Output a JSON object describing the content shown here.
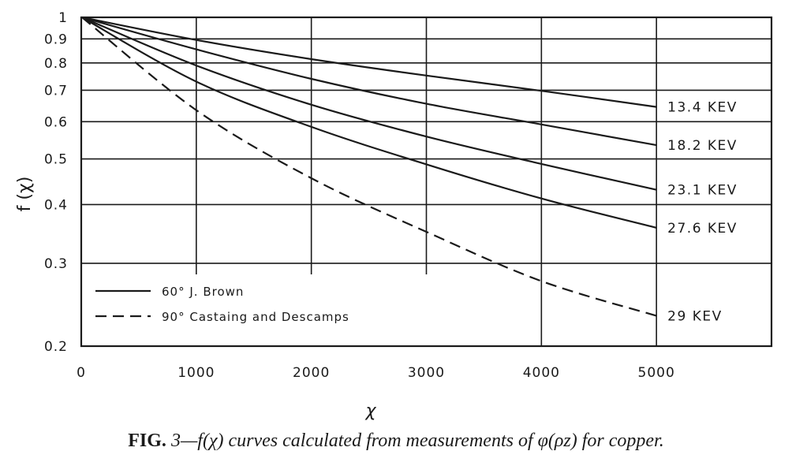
{
  "chart_data": {
    "type": "line",
    "title": "",
    "xlabel": "χ",
    "ylabel": "f (χ)",
    "xlim": [
      0,
      6000
    ],
    "ylim": [
      0.2,
      1
    ],
    "yscale": "log",
    "grid": true,
    "x_ticks": [
      {
        "value": 0,
        "label": "0"
      },
      {
        "value": 1000,
        "label": "1000"
      },
      {
        "value": 2000,
        "label": "2000"
      },
      {
        "value": 3000,
        "label": "3000"
      },
      {
        "value": 4000,
        "label": "4000"
      },
      {
        "value": 5000,
        "label": "5000"
      }
    ],
    "y_ticks": [
      {
        "value": 1,
        "label": "1"
      },
      {
        "value": 0.9,
        "label": "0.9"
      },
      {
        "value": 0.8,
        "label": "0.8"
      },
      {
        "value": 0.7,
        "label": "0.7"
      },
      {
        "value": 0.6,
        "label": "0.6"
      },
      {
        "value": 0.5,
        "label": "0.5"
      },
      {
        "value": 0.4,
        "label": "0.4"
      },
      {
        "value": 0.3,
        "label": "0.3"
      },
      {
        "value": 0.2,
        "label": "0.2"
      }
    ],
    "series": [
      {
        "name": "13.4 KEV",
        "style": "solid",
        "x": [
          0,
          1000,
          2000,
          3000,
          4000,
          5000
        ],
        "y": [
          1.0,
          0.895,
          0.815,
          0.752,
          0.698,
          0.645
        ]
      },
      {
        "name": "18.2 KEV",
        "style": "solid",
        "x": [
          0,
          1000,
          2000,
          3000,
          4000,
          5000
        ],
        "y": [
          1.0,
          0.855,
          0.74,
          0.655,
          0.592,
          0.535
        ]
      },
      {
        "name": "23.1 KEV",
        "style": "solid",
        "x": [
          0,
          1000,
          2000,
          3000,
          4000,
          5000
        ],
        "y": [
          1.0,
          0.79,
          0.652,
          0.558,
          0.488,
          0.43
        ]
      },
      {
        "name": "27.6 KEV",
        "style": "solid",
        "x": [
          0,
          1000,
          2000,
          3000,
          4000,
          5000
        ],
        "y": [
          1.0,
          0.73,
          0.585,
          0.487,
          0.412,
          0.357
        ]
      },
      {
        "name": "29 KEV",
        "style": "dashed",
        "x": [
          0,
          1000,
          2000,
          3000,
          4000,
          5000
        ],
        "y": [
          1.0,
          0.635,
          0.455,
          0.35,
          0.275,
          0.232
        ]
      }
    ],
    "legend": {
      "placement": "bottom-left",
      "entries": [
        {
          "style": "solid",
          "label": "60°  J. Brown"
        },
        {
          "style": "dashed",
          "label": "90°  Castaing  and  Descamps"
        }
      ]
    }
  },
  "caption": {
    "label": "FIG.",
    "text": " 3—f(χ) curves calculated from measurements of φ(ρz) for copper."
  }
}
